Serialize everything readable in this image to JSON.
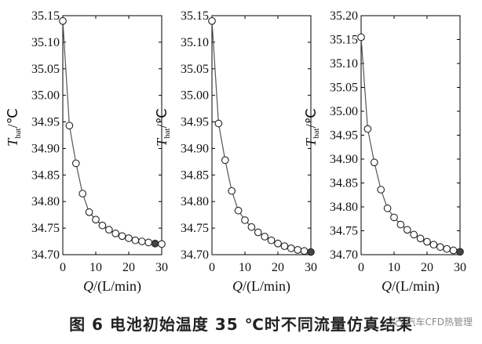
{
  "figure": {
    "caption": "图 6   电池初始温度 35 ℃时不同流量仿真结果",
    "watermark": "汽车CFD热管理"
  },
  "chart_data": [
    {
      "type": "line",
      "x_axis": {
        "label_italic": "Q",
        "label_rest": "/(L/min)",
        "lim": [
          0,
          30
        ],
        "ticks": [
          0,
          10,
          20,
          30
        ]
      },
      "y_axis": {
        "label_italic": "T",
        "label_sub": "bat",
        "label_rest": "/℃",
        "lim": [
          34.7,
          35.15
        ],
        "ticks": [
          "34.70",
          "34.75",
          "34.80",
          "34.85",
          "34.90",
          "34.95",
          "35.00",
          "35.05",
          "35.10",
          "35.15"
        ]
      },
      "series": [
        {
          "x": [
            0,
            2,
            4,
            6,
            8,
            10,
            12,
            14,
            16,
            18,
            20,
            22,
            24,
            26,
            28,
            30
          ],
          "y": [
            35.14,
            34.943,
            34.872,
            34.815,
            34.78,
            34.766,
            34.755,
            34.747,
            34.74,
            34.735,
            34.731,
            34.727,
            34.725,
            34.723,
            34.721,
            34.72
          ],
          "highlight_index": 14
        }
      ],
      "grid": false
    },
    {
      "type": "line",
      "x_axis": {
        "label_italic": "Q",
        "label_rest": "/(L/min)",
        "lim": [
          0,
          30
        ],
        "ticks": [
          0,
          10,
          20,
          30
        ]
      },
      "y_axis": {
        "label_italic": "T",
        "label_sub": "bat",
        "label_rest": "/℃",
        "lim": [
          34.7,
          35.15
        ],
        "ticks": [
          "34.70",
          "34.75",
          "34.80",
          "34.85",
          "34.90",
          "34.95",
          "35.00",
          "35.05",
          "35.10",
          "35.15"
        ]
      },
      "series": [
        {
          "x": [
            0,
            2,
            4,
            6,
            8,
            10,
            12,
            14,
            16,
            18,
            20,
            22,
            24,
            26,
            28,
            30
          ],
          "y": [
            35.14,
            34.947,
            34.878,
            34.82,
            34.783,
            34.765,
            34.752,
            34.742,
            34.734,
            34.727,
            34.721,
            34.716,
            34.712,
            34.709,
            34.707,
            34.705
          ],
          "highlight_index": 15
        }
      ],
      "grid": false
    },
    {
      "type": "line",
      "x_axis": {
        "label_italic": "Q",
        "label_rest": "/(L/min)",
        "lim": [
          0,
          30
        ],
        "ticks": [
          0,
          10,
          20,
          30
        ]
      },
      "y_axis": {
        "label_italic": "T",
        "label_sub": "bat",
        "label_rest": "/℃",
        "lim": [
          34.7,
          35.2
        ],
        "ticks": [
          "34.70",
          "34.75",
          "34.80",
          "34.85",
          "34.90",
          "34.95",
          "35.00",
          "35.05",
          "35.10",
          "35.15",
          "35.20"
        ]
      },
      "series": [
        {
          "x": [
            0,
            2,
            4,
            6,
            8,
            10,
            12,
            14,
            16,
            18,
            20,
            22,
            24,
            26,
            28,
            30
          ],
          "y": [
            35.155,
            34.963,
            34.893,
            34.836,
            34.797,
            34.778,
            34.763,
            34.752,
            34.742,
            34.734,
            34.727,
            34.721,
            34.716,
            34.712,
            34.709,
            34.706
          ],
          "highlight_index": 15
        }
      ],
      "grid": false
    }
  ]
}
